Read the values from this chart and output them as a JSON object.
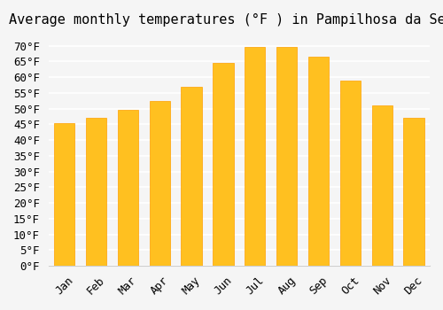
{
  "title": "Average monthly temperatures (°F ) in Pampilhosa da Serra",
  "months": [
    "Jan",
    "Feb",
    "Mar",
    "Apr",
    "May",
    "Jun",
    "Jul",
    "Aug",
    "Sep",
    "Oct",
    "Nov",
    "Dec"
  ],
  "values": [
    45.5,
    47.0,
    49.5,
    52.5,
    57.0,
    64.5,
    69.5,
    69.5,
    66.5,
    59.0,
    51.0,
    47.0
  ],
  "bar_color": "#FFC020",
  "bar_edge_color": "#FFA000",
  "ylim": [
    0,
    73
  ],
  "yticks": [
    0,
    5,
    10,
    15,
    20,
    25,
    30,
    35,
    40,
    45,
    50,
    55,
    60,
    65,
    70
  ],
  "ytick_labels": [
    "0°F",
    "5°F",
    "10°F",
    "15°F",
    "20°F",
    "25°F",
    "30°F",
    "35°F",
    "40°F",
    "45°F",
    "50°F",
    "55°F",
    "60°F",
    "65°F",
    "70°F"
  ],
  "background_color": "#f5f5f5",
  "grid_color": "#ffffff",
  "title_fontsize": 11,
  "tick_fontsize": 9,
  "bar_width": 0.65
}
